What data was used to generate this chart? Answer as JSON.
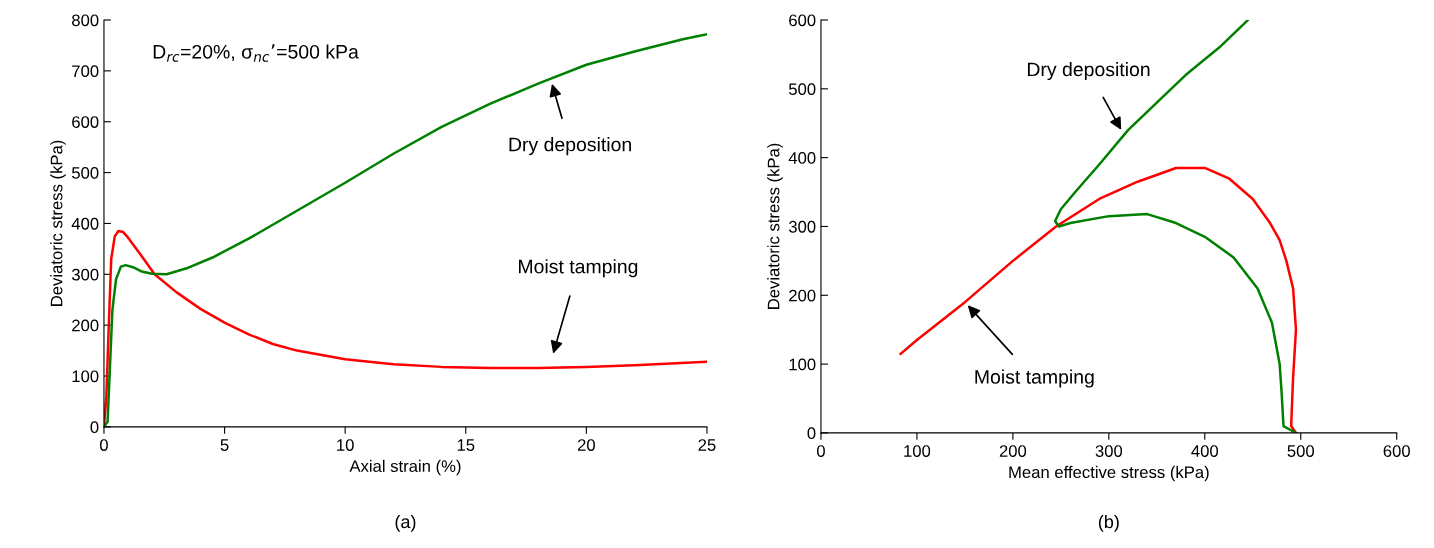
{
  "chart_data": [
    {
      "type": "line",
      "xlabel": "Axial strain (%)",
      "ylabel": "Deviatoric stress (kPa)",
      "xlim": [
        0,
        25
      ],
      "xticks": [
        0,
        5,
        10,
        15,
        20,
        25
      ],
      "ylim": [
        0,
        800
      ],
      "yticks": [
        0,
        100,
        200,
        300,
        400,
        500,
        600,
        700,
        800
      ],
      "grid": false,
      "series": [
        {
          "color": "#ff0000",
          "x": [
            0,
            0.1,
            0.2,
            0.3,
            0.45,
            0.6,
            0.8,
            1.0,
            1.5,
            2.1,
            3,
            4,
            5,
            6,
            7,
            8,
            10,
            12,
            14,
            16,
            18,
            20,
            22,
            25
          ],
          "values": [
            0,
            60,
            200,
            330,
            375,
            385,
            383,
            372,
            340,
            300,
            265,
            232,
            205,
            182,
            163,
            150,
            133,
            123,
            118,
            116,
            116,
            118,
            121,
            128
          ]
        },
        {
          "color": "#008000",
          "x": [
            0,
            0.15,
            0.25,
            0.35,
            0.5,
            0.7,
            0.9,
            1.2,
            1.6,
            2.0,
            2.6,
            3.5,
            4.5,
            6,
            8,
            10,
            12,
            14,
            16,
            18,
            20,
            22,
            24,
            25
          ],
          "values": [
            0,
            10,
            120,
            230,
            290,
            315,
            318,
            314,
            305,
            301,
            300,
            313,
            333,
            370,
            425,
            480,
            537,
            590,
            635,
            675,
            712,
            738,
            762,
            772
          ]
        }
      ],
      "annotations": [
        "D$_{rc}$=20%, σ$_{nc}$’=500 kPa",
        "Dry deposition",
        "Moist tamping",
        "(a)"
      ]
    },
    {
      "type": "line",
      "xlabel": "Mean effective stress (kPa)",
      "ylabel": "Deviatoric stress (kPa)",
      "xlim": [
        0,
        600
      ],
      "xticks": [
        0,
        100,
        200,
        300,
        400,
        500,
        600
      ],
      "ylim": [
        0,
        600
      ],
      "yticks": [
        0,
        100,
        200,
        300,
        400,
        500,
        600
      ],
      "grid": false,
      "series": [
        {
          "color": "#ff0000",
          "x": [
            495,
            490,
            492,
            495,
            492,
            485,
            478,
            468,
            450,
            425,
            400,
            370,
            330,
            290,
            245,
            200,
            150,
            100,
            83
          ],
          "values": [
            0,
            10,
            80,
            150,
            210,
            250,
            280,
            305,
            340,
            370,
            385,
            385,
            365,
            340,
            300,
            250,
            190,
            135,
            115
          ]
        },
        {
          "color": "#008000",
          "x": [
            495,
            482,
            480,
            478,
            470,
            455,
            430,
            400,
            370,
            340,
            300,
            260,
            248,
            244,
            250,
            265,
            290,
            320,
            350,
            380,
            415,
            445
          ],
          "values": [
            0,
            10,
            60,
            100,
            160,
            210,
            255,
            285,
            305,
            318,
            315,
            305,
            300,
            308,
            325,
            350,
            390,
            440,
            480,
            520,
            560,
            600
          ]
        }
      ],
      "annotations": [
        "(b)",
        {
          "text": "Dry deposition",
          "x": 315,
          "y": 435
        },
        {
          "text": "Moist tamping",
          "x": 150,
          "y": 190
        }
      ]
    }
  ]
}
